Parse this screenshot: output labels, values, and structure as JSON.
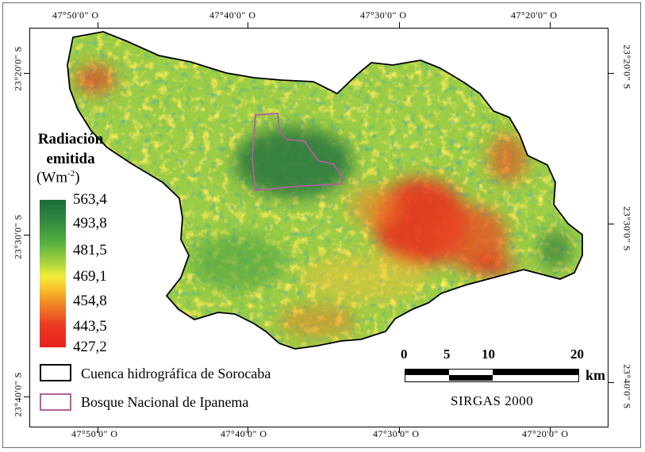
{
  "coordinates": {
    "top": [
      "47°50'0\" O",
      "47°40'0\" O",
      "47°30'0\" O",
      "47°20'0\" O"
    ],
    "bottom": [
      "47°50'0\" O",
      "47°40'0\" O",
      "47°30'0\" O",
      "47°20'0\" O"
    ],
    "left": [
      "23°20'0\" S",
      "23°30'0\" S",
      "23°40'0\" S"
    ],
    "right": [
      "23°20'0\" S",
      "23°30'0\" S",
      "23°40'0\" S"
    ]
  },
  "legend": {
    "title_line1": "Radiación",
    "title_line2": "emitida",
    "unit_base": "(Wm",
    "unit_exp": "-2",
    "unit_close": ")",
    "values": [
      "563,4",
      "493,8",
      "481,5",
      "469,1",
      "454,8",
      "443,5",
      "427,2"
    ],
    "ramp_colors": [
      "#1c6b3b",
      "#2f8a3f",
      "#59b23f",
      "#a6d23c",
      "#f3ee3a",
      "#f08a25",
      "#e8201f"
    ],
    "boundary_label": "Cuenca hidrográfica de Sorocaba",
    "boundary_color": "#000000",
    "forest_label": "Bosque Nacional de Ipanema",
    "forest_color": "#b25fa0"
  },
  "scale": {
    "labels": [
      "0",
      "5",
      "10",
      "20"
    ],
    "unit": "km"
  },
  "crs": "SIRGAS 2000"
}
